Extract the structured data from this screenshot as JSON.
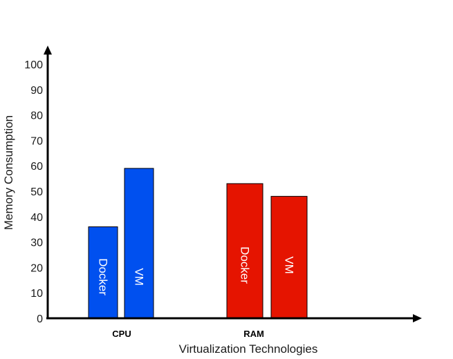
{
  "chart_data": {
    "type": "bar",
    "xlabel": "Virtualization Technologies",
    "ylabel": "Memory Consumption",
    "ylim": [
      0,
      100
    ],
    "yticks": [
      "0",
      "10",
      "20",
      "30",
      "40",
      "50",
      "60",
      "70",
      "80",
      "90",
      "100"
    ],
    "grid": false,
    "legend": "none",
    "groups": [
      {
        "category": "CPU",
        "bars": [
          {
            "label": "Docker",
            "value": 36,
            "color": "#0050ef"
          },
          {
            "label": "VM",
            "value": 59,
            "color": "#0050ef"
          }
        ]
      },
      {
        "category": "RAM",
        "bars": [
          {
            "label": "Docker",
            "value": 53,
            "color": "#e51400"
          },
          {
            "label": "VM",
            "value": 48,
            "color": "#e51400"
          }
        ]
      }
    ]
  }
}
